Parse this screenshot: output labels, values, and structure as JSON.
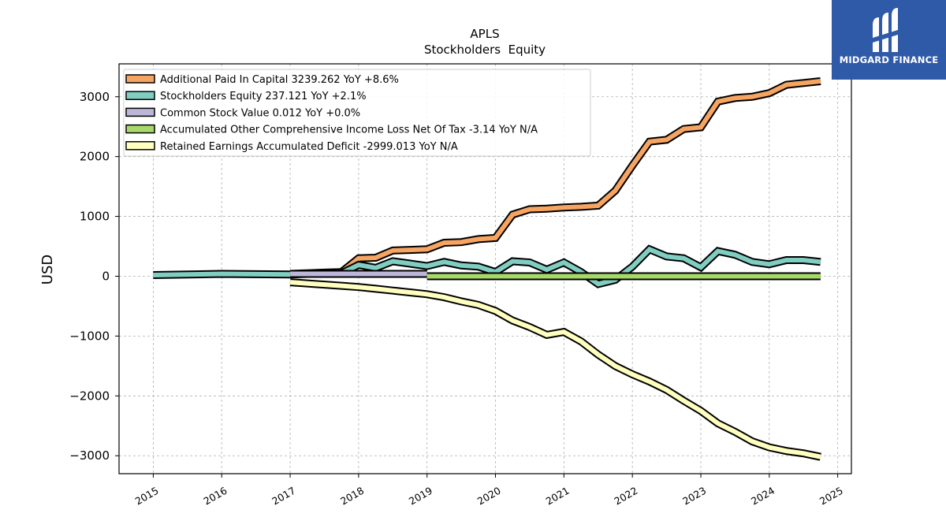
{
  "chart_data": {
    "type": "line",
    "title": "APLS",
    "subtitle": "Stockholders  Equity",
    "ylabel": "USD",
    "xlabel": "",
    "xlim": [
      2014.5,
      2025.2
    ],
    "ylim": [
      -3300,
      3550
    ],
    "yticks": [
      -3000,
      -2000,
      -1000,
      0,
      1000,
      2000,
      3000
    ],
    "ytick_labels": [
      "−3000",
      "−2000",
      "−1000",
      "0",
      "1000",
      "2000",
      "3000"
    ],
    "xticks": [
      "2015",
      "2016",
      "2017",
      "2018",
      "2019",
      "2020",
      "2021",
      "2022",
      "2023",
      "2024",
      "2025"
    ],
    "grid": true,
    "legend_position": "top-left",
    "series": [
      {
        "name": "Additional Paid In Capital",
        "legend": "Additional Paid In Capital  3239.262 YoY +8.6%",
        "color": "#f5a462",
        "x": [
          2017.0,
          2017.25,
          2017.5,
          2017.75,
          2018.0,
          2018.25,
          2018.5,
          2018.75,
          2019.0,
          2019.25,
          2019.5,
          2019.75,
          2020.0,
          2020.25,
          2020.5,
          2020.75,
          2021.0,
          2021.25,
          2021.5,
          2021.75,
          2022.0,
          2022.25,
          2022.5,
          2022.75,
          2023.0,
          2023.25,
          2023.5,
          2023.75,
          2024.0,
          2024.25,
          2024.5,
          2024.75
        ],
        "values": [
          40,
          50,
          60,
          70,
          300,
          310,
          430,
          440,
          450,
          560,
          570,
          620,
          640,
          1030,
          1120,
          1130,
          1150,
          1160,
          1180,
          1430,
          1850,
          2250,
          2280,
          2460,
          2490,
          2920,
          2980,
          3000,
          3060,
          3200,
          3230,
          3260
        ]
      },
      {
        "name": "Stockholders Equity",
        "legend": "Stockholders Equity  237.121 YoY +2.1%",
        "color": "#80cdc1",
        "x": [
          2015.0,
          2016.0,
          2017.0,
          2017.25,
          2017.5,
          2017.75,
          2018.0,
          2018.25,
          2018.5,
          2018.75,
          2019.0,
          2019.25,
          2019.5,
          2019.75,
          2020.0,
          2020.25,
          2020.5,
          2020.75,
          2021.0,
          2021.25,
          2021.5,
          2021.75,
          2022.0,
          2022.25,
          2022.5,
          2022.75,
          2023.0,
          2023.25,
          2023.5,
          2023.75,
          2024.0,
          2024.25,
          2024.5,
          2024.75
        ],
        "values": [
          20,
          40,
          30,
          40,
          45,
          50,
          190,
          140,
          250,
          210,
          170,
          240,
          180,
          160,
          70,
          250,
          230,
          110,
          230,
          70,
          -130,
          -60,
          160,
          450,
          330,
          300,
          150,
          420,
          360,
          240,
          200,
          270,
          270,
          240
        ]
      },
      {
        "name": "Common Stock Value",
        "legend": "Common Stock Value  0.012 YoY +0.0%",
        "color": "#bcb6d9",
        "x": [
          2017.0,
          2019.0
        ],
        "values": [
          40,
          40
        ]
      },
      {
        "name": "Accumulated Other Comprehensive Income Loss Net Of Tax",
        "legend": "Accumulated Other Comprehensive Income Loss Net Of Tax  -3.14 YoY N/A",
        "color": "#a6d96a",
        "x": [
          2019.0,
          2024.75
        ],
        "values": [
          0,
          0
        ]
      },
      {
        "name": "Retained Earnings Accumulated Deficit",
        "legend": "Retained Earnings Accumulated Deficit  -2999.013 YoY N/A",
        "color": "#ffffbf",
        "x": [
          2017.0,
          2017.25,
          2017.5,
          2017.75,
          2018.0,
          2018.25,
          2018.5,
          2018.75,
          2019.0,
          2019.25,
          2019.5,
          2019.75,
          2020.0,
          2020.25,
          2020.5,
          2020.75,
          2021.0,
          2021.25,
          2021.5,
          2021.75,
          2022.0,
          2022.25,
          2022.5,
          2022.75,
          2023.0,
          2023.25,
          2023.5,
          2023.75,
          2024.0,
          2024.25,
          2024.5,
          2024.75
        ],
        "values": [
          -100,
          -120,
          -140,
          -160,
          -180,
          -210,
          -240,
          -270,
          -300,
          -350,
          -420,
          -480,
          -580,
          -740,
          -850,
          -980,
          -930,
          -1090,
          -1310,
          -1500,
          -1640,
          -1760,
          -1900,
          -2080,
          -2250,
          -2460,
          -2600,
          -2760,
          -2860,
          -2920,
          -2960,
          -3020
        ]
      }
    ]
  },
  "logo": {
    "text": "MIDGARD FINANCE"
  }
}
